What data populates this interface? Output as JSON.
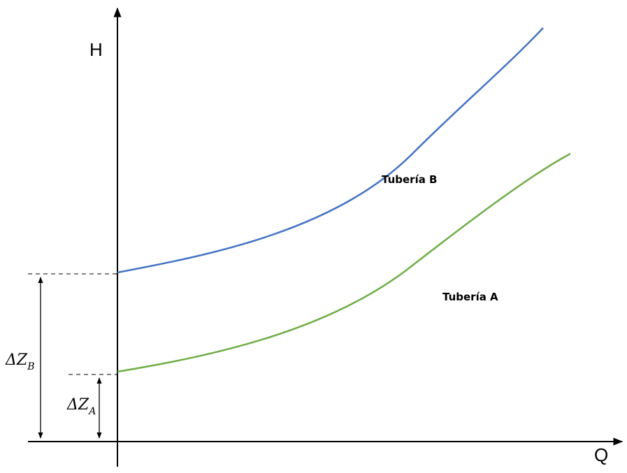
{
  "chart_data": {
    "type": "line",
    "xlabel": "Q",
    "ylabel": "H",
    "series": [
      {
        "name": "Tubería B",
        "color": "#4472C4",
        "intercept": 1.0
      },
      {
        "name": "Tubería A",
        "color": "#70AD47",
        "intercept": 0.41
      }
    ],
    "annotations": [
      {
        "label_main": "ΔZ",
        "label_sub": "B",
        "series": "Tubería B"
      },
      {
        "label_main": "ΔZ",
        "label_sub": "A",
        "series": "Tubería A"
      }
    ]
  }
}
